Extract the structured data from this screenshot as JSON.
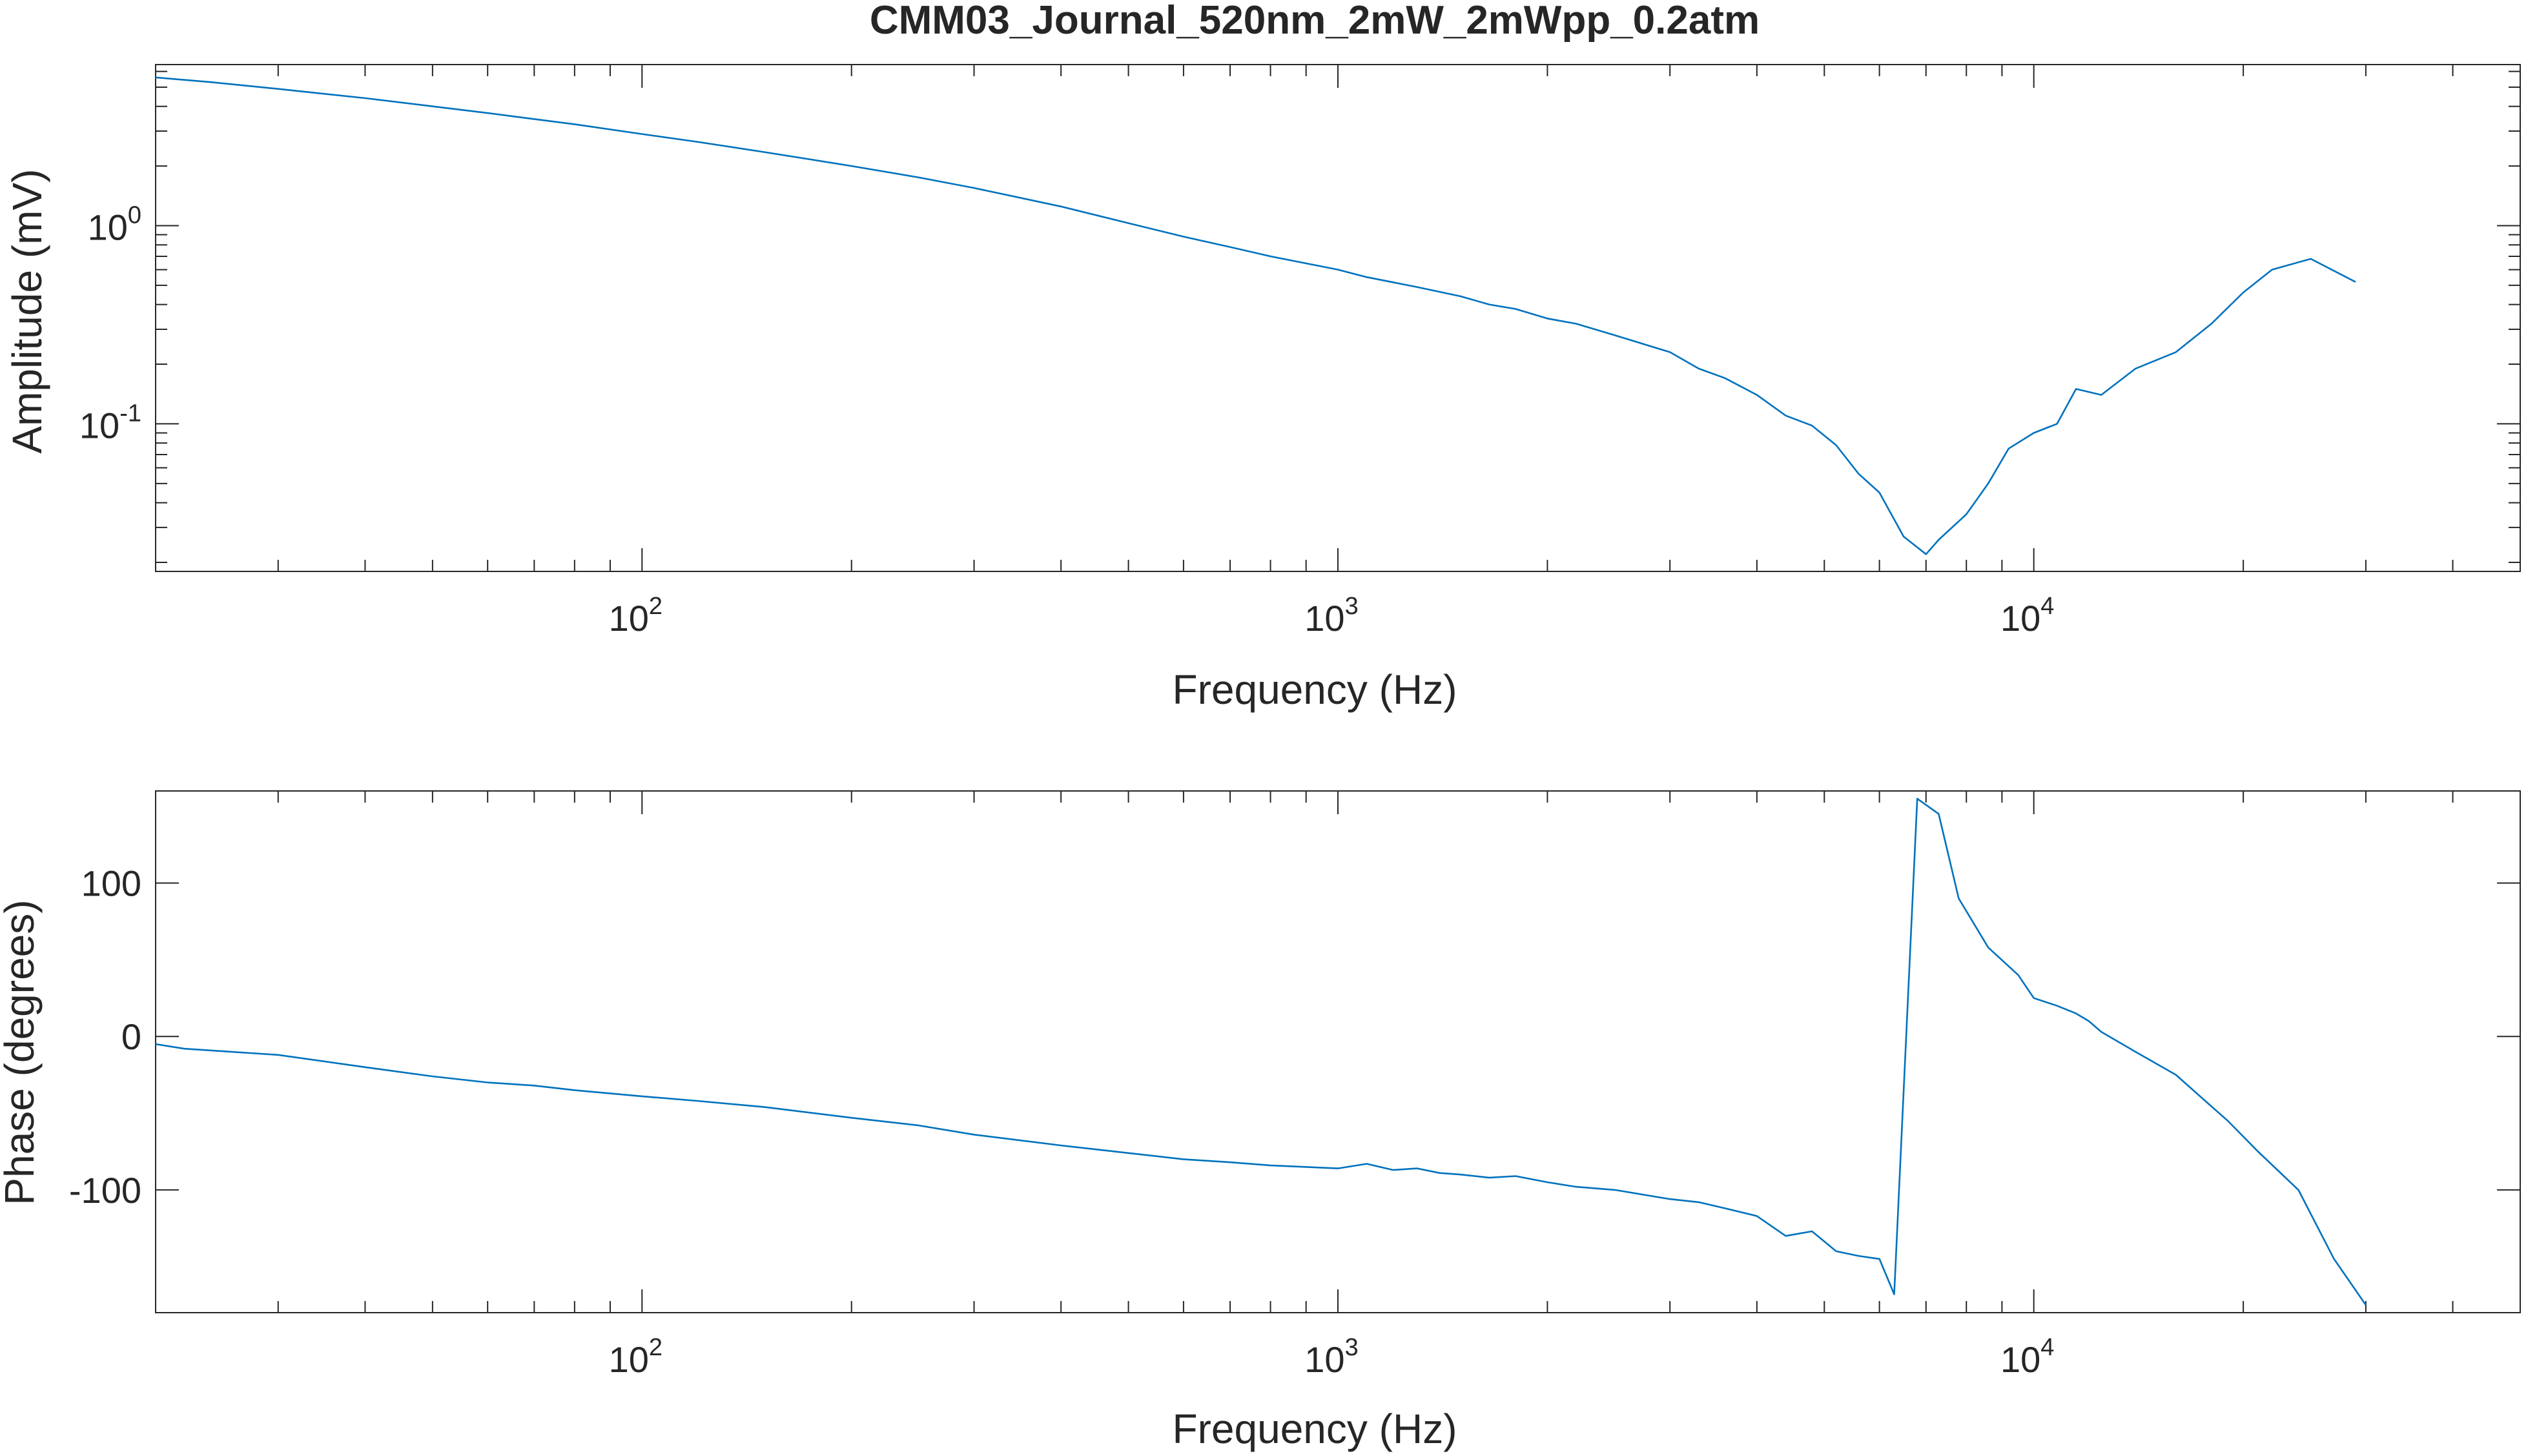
{
  "figure": {
    "title": "CMM03_Journal_520nm_2mW_2mWpp_0.2atm"
  },
  "colors": {
    "line": "#0072BD",
    "axes": "#262626",
    "background": "#ffffff"
  },
  "chart_data": [
    {
      "type": "line",
      "title": "CMM03_Journal_520nm_2mW_2mWpp_0.2atm",
      "xlabel": "Frequency (Hz)",
      "ylabel": "Amplitude (mV)",
      "xscale": "log",
      "yscale": "log",
      "xlim": [
        20,
        50000
      ],
      "ylim": [
        0.018,
        6.5
      ],
      "grid": false,
      "legend": "none",
      "x_ticks": [
        {
          "value": 100,
          "base": "10",
          "exp": "2"
        },
        {
          "value": 1000,
          "base": "10",
          "exp": "3"
        },
        {
          "value": 10000,
          "base": "10",
          "exp": "4"
        }
      ],
      "y_ticks": [
        {
          "value": 1,
          "base": "10",
          "exp": "0"
        },
        {
          "value": 0.1,
          "base": "10",
          "exp": "-1"
        }
      ],
      "series": [
        {
          "x": [
            20,
            24,
            30,
            40,
            50,
            60,
            70,
            80,
            100,
            120,
            150,
            200,
            250,
            300,
            400,
            500,
            600,
            700,
            800,
            1000,
            1100,
            1300,
            1500,
            1650,
            1800,
            2000,
            2200,
            2500,
            3000,
            3300,
            3600,
            4000,
            4400,
            4800,
            5200,
            5600,
            6000,
            6500,
            7000,
            7300,
            8000,
            8600,
            9200,
            10000,
            10800,
            11500,
            12500,
            14000,
            16000,
            18000,
            20000,
            22000,
            25000,
            29000
          ],
          "y": [
            5.6,
            5.3,
            4.9,
            4.4,
            4.0,
            3.7,
            3.45,
            3.25,
            2.9,
            2.65,
            2.35,
            2.0,
            1.75,
            1.55,
            1.25,
            1.03,
            0.88,
            0.78,
            0.7,
            0.6,
            0.55,
            0.49,
            0.44,
            0.4,
            0.38,
            0.34,
            0.32,
            0.28,
            0.23,
            0.19,
            0.17,
            0.14,
            0.11,
            0.098,
            0.078,
            0.056,
            0.045,
            0.027,
            0.022,
            0.026,
            0.035,
            0.05,
            0.075,
            0.09,
            0.1,
            0.15,
            0.14,
            0.19,
            0.23,
            0.32,
            0.46,
            0.6,
            0.68,
            0.52
          ]
        }
      ]
    },
    {
      "type": "line",
      "xlabel": "Frequency (Hz)",
      "ylabel": "Phase (degrees)",
      "xscale": "log",
      "yscale": "linear",
      "xlim": [
        20,
        50000
      ],
      "ylim": [
        -180,
        160
      ],
      "grid": false,
      "legend": "none",
      "x_ticks": [
        {
          "value": 100,
          "base": "10",
          "exp": "2"
        },
        {
          "value": 1000,
          "base": "10",
          "exp": "3"
        },
        {
          "value": 10000,
          "base": "10",
          "exp": "4"
        }
      ],
      "y_ticks": [
        {
          "value": 100,
          "label": "100"
        },
        {
          "value": 0,
          "label": "0"
        },
        {
          "value": -100,
          "label": "-100"
        }
      ],
      "series": [
        {
          "x": [
            20,
            22,
            30,
            40,
            50,
            60,
            70,
            80,
            100,
            120,
            150,
            200,
            250,
            300,
            400,
            500,
            600,
            700,
            800,
            1000,
            1100,
            1200,
            1300,
            1400,
            1500,
            1650,
            1800,
            2000,
            2200,
            2500,
            3000,
            3300,
            3600,
            4000,
            4400,
            4800,
            5200,
            5600,
            6000,
            6300,
            6800,
            7300,
            7800,
            8600,
            9500,
            10000,
            10800,
            11500,
            12000,
            12500,
            14000,
            16000,
            19000,
            21000,
            24000,
            27000,
            30000
          ],
          "y": [
            -5,
            -8,
            -12,
            -20,
            -26,
            -30,
            -32,
            -35,
            -39,
            -42,
            -46,
            -53,
            -58,
            -64,
            -71,
            -76,
            -80,
            -82,
            -84,
            -86,
            -83,
            -87,
            -86,
            -89,
            -90,
            -92,
            -91,
            -95,
            -98,
            -100,
            -106,
            -108,
            -112,
            -117,
            -130,
            -127,
            -140,
            -143,
            -145,
            -168,
            155,
            145,
            90,
            58,
            40,
            25,
            20,
            15,
            10,
            3,
            -10,
            -25,
            -55,
            -75,
            -100,
            -145,
            -175
          ]
        }
      ]
    }
  ]
}
